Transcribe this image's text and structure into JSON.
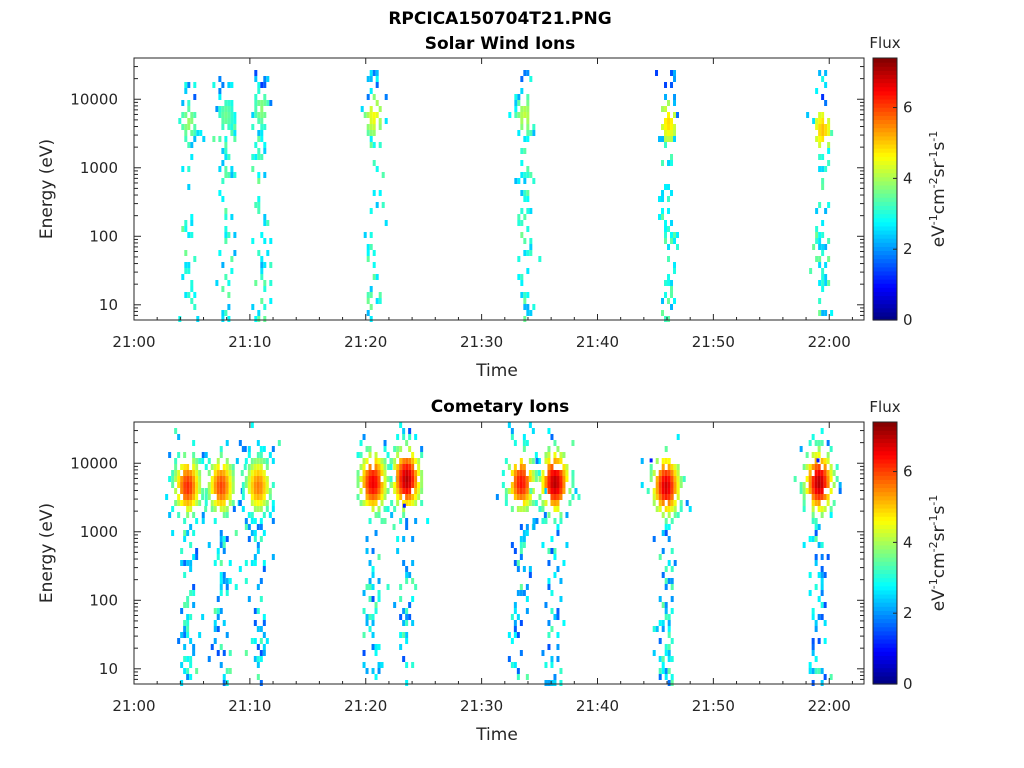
{
  "figure": {
    "title": "RPCICA150704T21.PNG"
  },
  "chart_data": [
    {
      "type": "heatmap",
      "title": "Solar Wind Ions",
      "xlabel": "Time",
      "ylabel": "Energy (eV)",
      "x_ticks": [
        "21:00",
        "21:10",
        "21:20",
        "21:30",
        "21:40",
        "21:50",
        "22:00"
      ],
      "y_ticks": [
        "10",
        "100",
        "1000",
        "10000"
      ],
      "y_scale": "log",
      "ylim": [
        6,
        40000
      ],
      "colorbar": {
        "title": "Flux",
        "ticks": [
          "0",
          "2",
          "4",
          "6"
        ],
        "range": [
          0,
          7.4
        ],
        "colormap": "jet"
      },
      "bursts": [
        {
          "t": 4.6,
          "core": 3.7,
          "peak": 3.9
        },
        {
          "t": 7.8,
          "core": 3.8,
          "peak": 3.6
        },
        {
          "t": 10.9,
          "core": 3.9,
          "peak": 3.8
        },
        {
          "t": 20.6,
          "core": 3.8,
          "peak": 4.6
        },
        {
          "t": 33.6,
          "core": 3.8,
          "peak": 4.2
        },
        {
          "t": 46.0,
          "core": 3.7,
          "peak": 4.9
        },
        {
          "t": 59.3,
          "core": 3.6,
          "peak": 5.1
        }
      ]
    },
    {
      "type": "heatmap",
      "title": "Cometary Ions",
      "xlabel": "Time",
      "ylabel": "Energy (eV)",
      "x_ticks": [
        "21:00",
        "21:10",
        "21:20",
        "21:30",
        "21:40",
        "21:50",
        "22:00"
      ],
      "y_ticks": [
        "10",
        "100",
        "1000",
        "10000"
      ],
      "y_scale": "log",
      "ylim": [
        6,
        40000
      ],
      "colorbar": {
        "title": "Flux",
        "ticks": [
          "0",
          "2",
          "4",
          "6"
        ],
        "range": [
          0,
          7.4
        ],
        "colormap": "jet"
      },
      "bursts": [
        {
          "t": 4.5,
          "core": 3.7,
          "peak": 6.2
        },
        {
          "t": 7.4,
          "core": 3.7,
          "peak": 6.0
        },
        {
          "t": 10.6,
          "core": 3.7,
          "peak": 5.6
        },
        {
          "t": 20.5,
          "core": 3.75,
          "peak": 6.6
        },
        {
          "t": 23.4,
          "core": 3.8,
          "peak": 7.0
        },
        {
          "t": 33.3,
          "core": 3.75,
          "peak": 6.4
        },
        {
          "t": 36.2,
          "core": 3.75,
          "peak": 7.0
        },
        {
          "t": 45.8,
          "core": 3.7,
          "peak": 6.8
        },
        {
          "t": 59.0,
          "core": 3.75,
          "peak": 7.0
        }
      ],
      "isolated_points": [
        {
          "t": 44.5,
          "energy": 11000
        },
        {
          "t": 58.9,
          "energy": 11000
        },
        {
          "t": 23.2,
          "energy": 2400
        }
      ]
    }
  ]
}
